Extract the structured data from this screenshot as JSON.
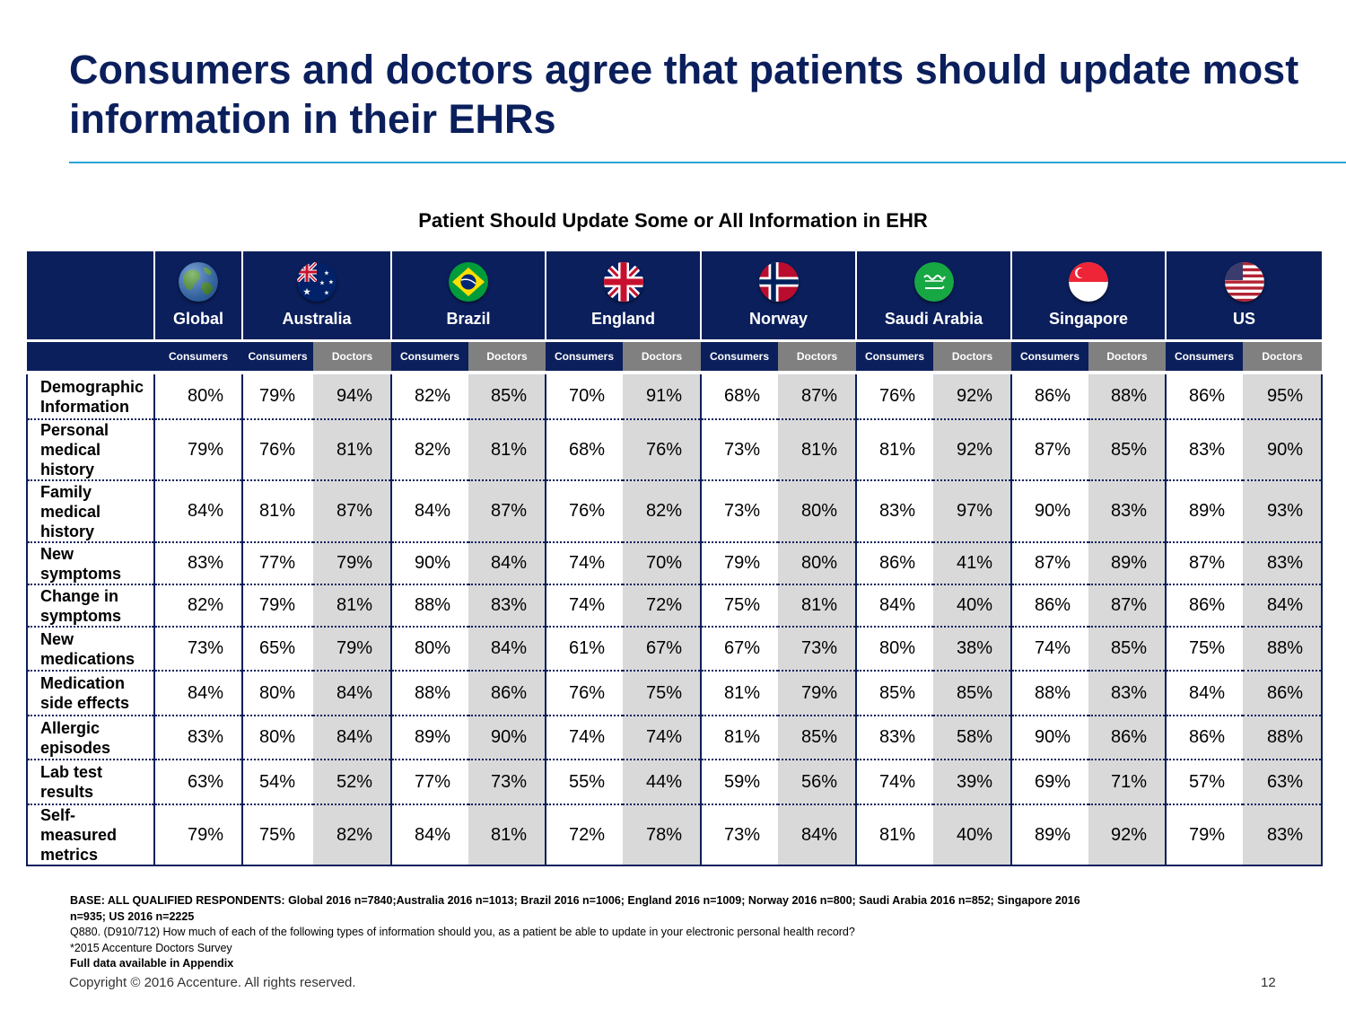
{
  "title": "Consumers and doctors agree that patients should update most information in their EHRs",
  "table_title": "Patient Should Update Some or All Information in EHR",
  "sub_labels": {
    "consumers": "Consumers",
    "doctors": "Doctors"
  },
  "countries": [
    {
      "name": "Global",
      "flag": "globe-icon"
    },
    {
      "name": "Australia",
      "flag": "australia-flag-icon"
    },
    {
      "name": "Brazil",
      "flag": "brazil-flag-icon"
    },
    {
      "name": "England",
      "flag": "england-flag-icon"
    },
    {
      "name": "Norway",
      "flag": "norway-flag-icon"
    },
    {
      "name": "Saudi Arabia",
      "flag": "saudi-arabia-flag-icon"
    },
    {
      "name": "Singapore",
      "flag": "singapore-flag-icon"
    },
    {
      "name": "US",
      "flag": "us-flag-icon"
    }
  ],
  "rows": [
    {
      "label": "Demographic Information",
      "values": [
        "80%",
        "79%",
        "94%",
        "82%",
        "85%",
        "70%",
        "91%",
        "68%",
        "87%",
        "76%",
        "92%",
        "86%",
        "88%",
        "86%",
        "95%"
      ]
    },
    {
      "label": "Personal medical history",
      "values": [
        "79%",
        "76%",
        "81%",
        "82%",
        "81%",
        "68%",
        "76%",
        "73%",
        "81%",
        "81%",
        "92%",
        "87%",
        "85%",
        "83%",
        "90%"
      ]
    },
    {
      "label": "Family medical history",
      "values": [
        "84%",
        "81%",
        "87%",
        "84%",
        "87%",
        "76%",
        "82%",
        "73%",
        "80%",
        "83%",
        "97%",
        "90%",
        "83%",
        "89%",
        "93%"
      ]
    },
    {
      "label": "New symptoms",
      "values": [
        "83%",
        "77%",
        "79%",
        "90%",
        "84%",
        "74%",
        "70%",
        "79%",
        "80%",
        "86%",
        "41%",
        "87%",
        "89%",
        "87%",
        "83%"
      ]
    },
    {
      "label": "Change in symptoms",
      "values": [
        "82%",
        "79%",
        "81%",
        "88%",
        "83%",
        "74%",
        "72%",
        "75%",
        "81%",
        "84%",
        "40%",
        "86%",
        "87%",
        "86%",
        "84%"
      ]
    },
    {
      "label": "New medications",
      "values": [
        "73%",
        "65%",
        "79%",
        "80%",
        "84%",
        "61%",
        "67%",
        "67%",
        "73%",
        "80%",
        "38%",
        "74%",
        "85%",
        "75%",
        "88%"
      ]
    },
    {
      "label": "Medication side effects",
      "values": [
        "84%",
        "80%",
        "84%",
        "88%",
        "86%",
        "76%",
        "75%",
        "81%",
        "79%",
        "85%",
        "85%",
        "88%",
        "83%",
        "84%",
        "86%"
      ]
    },
    {
      "label": "Allergic episodes",
      "values": [
        "83%",
        "80%",
        "84%",
        "89%",
        "90%",
        "74%",
        "74%",
        "81%",
        "85%",
        "83%",
        "58%",
        "90%",
        "86%",
        "86%",
        "88%"
      ]
    },
    {
      "label": "Lab test results",
      "values": [
        "63%",
        "54%",
        "52%",
        "77%",
        "73%",
        "55%",
        "44%",
        "59%",
        "56%",
        "74%",
        "39%",
        "69%",
        "71%",
        "57%",
        "63%"
      ]
    },
    {
      "label": "Self-measured metrics",
      "values": [
        "79%",
        "75%",
        "82%",
        "84%",
        "81%",
        "72%",
        "78%",
        "73%",
        "84%",
        "81%",
        "40%",
        "89%",
        "92%",
        "79%",
        "83%"
      ]
    }
  ],
  "notes": {
    "base": "BASE: ALL QUALIFIED RESPONDENTS: Global 2016 n=7840;Australia 2016 n=1013; Brazil  2016 n=1006; England  2016 n=1009; Norway  2016 n=800; Saudi Arabia 2016 n=852; Singapore  2016 n=935; US 2016 n=2225",
    "question": "Q880. (D910/712)  How much of each of the following types of information should you, as a patient be able to update in your electronic personal health record?",
    "survey": "*2015 Accenture Doctors Survey",
    "appendix": "Full data available in Appendix"
  },
  "footer": {
    "copyright": "Copyright © 2016 Accenture. All rights reserved.",
    "page": "12"
  },
  "colors": {
    "navy": "#0b1f5c",
    "accent_line": "#2aa3d8",
    "doctor_shade": "#d9d9d9",
    "doctor_header": "#808080"
  }
}
